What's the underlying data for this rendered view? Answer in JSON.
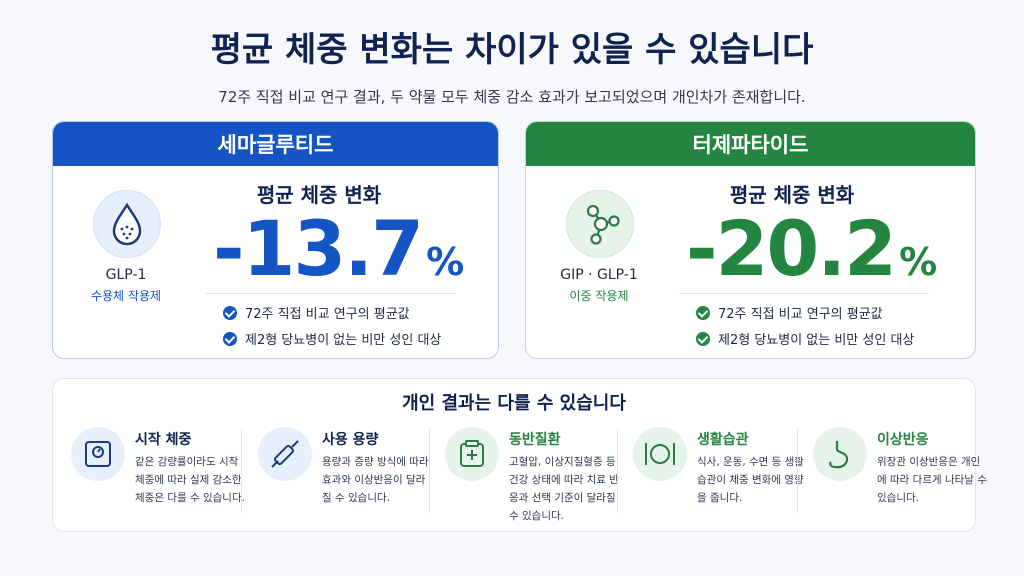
{
  "header": {
    "title": "평균 체중 변화는 차이가 있을 수 있습니다",
    "subtitle": "72주 직접 비교 연구 결과, 두 약물 모두 체중 감소 효과가 보고되었으며 개인차가 존재합니다."
  },
  "cards": [
    {
      "name": "세마글루티드",
      "icon_label": "GLP-1",
      "icon_sub": "수용체 작용제",
      "metric_label": "평균 체중 변화",
      "value": "-13.7",
      "unit": "%",
      "notes": [
        "72주 직접 비교 연구의 평균값",
        "제2형 당뇨병이 없는 비만 성인 대상"
      ]
    },
    {
      "name": "터제파타이드",
      "icon_label": "GIP · GLP-1",
      "icon_sub": "이중 작용제",
      "metric_label": "평균 체중 변화",
      "value": "-20.2",
      "unit": "%",
      "notes": [
        "72주 직접 비교 연구의 평균값",
        "제2형 당뇨병이 없는 비만 성인 대상"
      ]
    }
  ],
  "factors": {
    "title": "개인 결과는 다를 수 있습니다",
    "items": [
      {
        "title": "시작 체중",
        "text": "같은 감량률이라도 시작 체중에 따라 실제 감소한 체중은 다를 수 있습니다."
      },
      {
        "title": "사용 용량",
        "text": "용량과 증량 방식에 따라 효과와 이상반응이 달라질 수 있습니다."
      },
      {
        "title": "동반질환",
        "text": "고혈압, 이상지질혈증 등 건강 상태에 따라 치료 반응과 선택 기준이 달라질 수 있습니다."
      },
      {
        "title": "생활습관",
        "text": "식사, 운동, 수면 등 생활습관이 체중 변화에 영향을 줍니다."
      },
      {
        "title": "이상반응",
        "text": "위장관 이상반응은 개인에 따라 다르게 나타날 수 있습니다."
      }
    ]
  }
}
